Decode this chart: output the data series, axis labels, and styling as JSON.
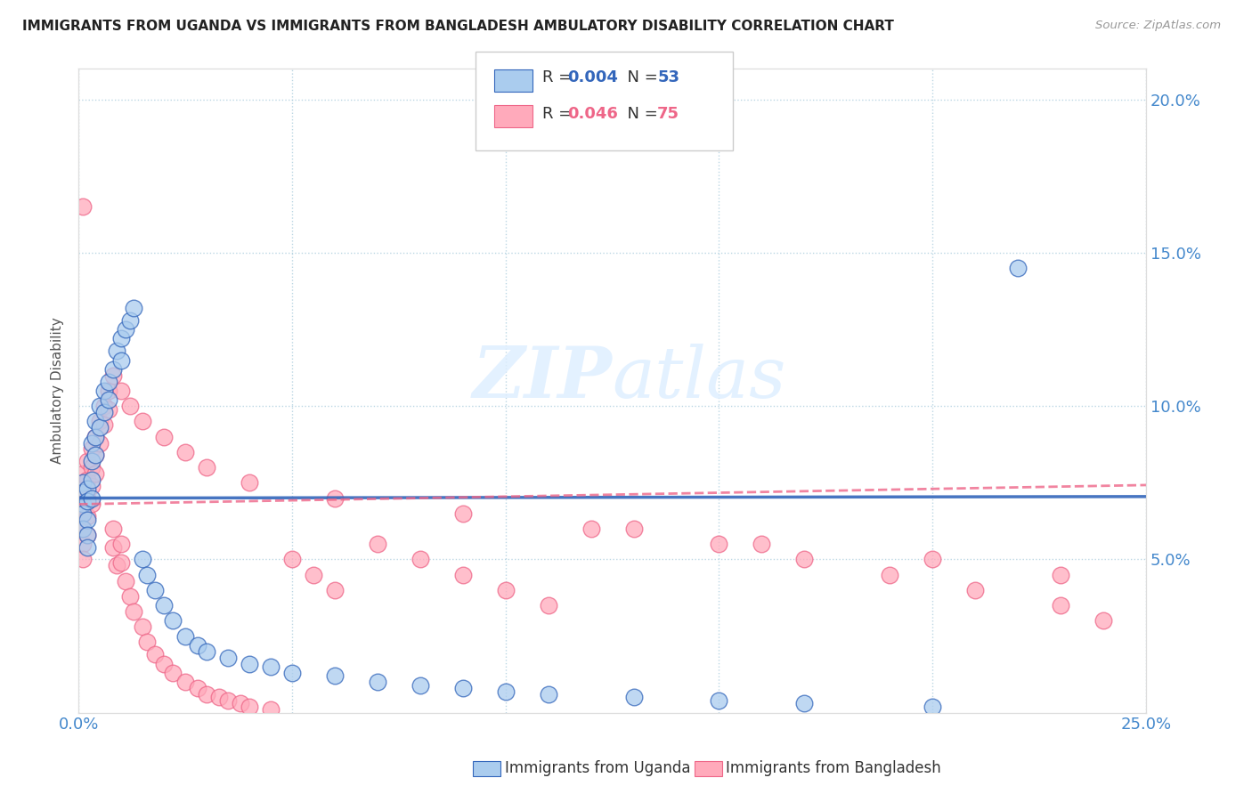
{
  "title": "IMMIGRANTS FROM UGANDA VS IMMIGRANTS FROM BANGLADESH AMBULATORY DISABILITY CORRELATION CHART",
  "source": "Source: ZipAtlas.com",
  "ylabel": "Ambulatory Disability",
  "xlim": [
    0.0,
    0.25
  ],
  "ylim": [
    0.0,
    0.21
  ],
  "yticks": [
    0.05,
    0.1,
    0.15,
    0.2
  ],
  "ytick_labels": [
    "5.0%",
    "10.0%",
    "15.0%",
    "20.0%"
  ],
  "xtick_positions": [
    0.0,
    0.05,
    0.1,
    0.15,
    0.2,
    0.25
  ],
  "xtick_labels": [
    "0.0%",
    "",
    "",
    "",
    "",
    "25.0%"
  ],
  "uganda_color": "#aaccee",
  "bangladesh_color": "#ffaabb",
  "uganda_line_color": "#3366bb",
  "bangladesh_line_color": "#ee6688",
  "background_color": "#ffffff",
  "uganda_N": 53,
  "bangladesh_N": 75,
  "uganda_R": 0.004,
  "bangladesh_R": 0.046,
  "legend_R_color": "#3366bb",
  "legend_bd_R_color": "#ee6688",
  "legend_N_color": "#3366bb",
  "legend_bd_N_color": "#ee6688",
  "uganda_x": [
    0.001,
    0.001,
    0.001,
    0.001,
    0.001,
    0.002,
    0.002,
    0.002,
    0.002,
    0.002,
    0.003,
    0.003,
    0.003,
    0.003,
    0.004,
    0.004,
    0.004,
    0.005,
    0.005,
    0.006,
    0.006,
    0.007,
    0.007,
    0.008,
    0.009,
    0.01,
    0.01,
    0.011,
    0.012,
    0.013,
    0.015,
    0.016,
    0.018,
    0.02,
    0.022,
    0.025,
    0.028,
    0.03,
    0.035,
    0.04,
    0.045,
    0.05,
    0.06,
    0.07,
    0.08,
    0.09,
    0.1,
    0.11,
    0.13,
    0.15,
    0.17,
    0.2,
    0.22
  ],
  "uganda_y": [
    0.075,
    0.072,
    0.068,
    0.065,
    0.06,
    0.073,
    0.069,
    0.063,
    0.058,
    0.054,
    0.088,
    0.082,
    0.076,
    0.07,
    0.095,
    0.09,
    0.084,
    0.1,
    0.093,
    0.105,
    0.098,
    0.108,
    0.102,
    0.112,
    0.118,
    0.122,
    0.115,
    0.125,
    0.128,
    0.132,
    0.05,
    0.045,
    0.04,
    0.035,
    0.03,
    0.025,
    0.022,
    0.02,
    0.018,
    0.016,
    0.015,
    0.013,
    0.012,
    0.01,
    0.009,
    0.008,
    0.007,
    0.006,
    0.005,
    0.004,
    0.003,
    0.002,
    0.145
  ],
  "bangladesh_x": [
    0.001,
    0.001,
    0.001,
    0.001,
    0.001,
    0.001,
    0.002,
    0.002,
    0.002,
    0.002,
    0.002,
    0.003,
    0.003,
    0.003,
    0.003,
    0.004,
    0.004,
    0.004,
    0.005,
    0.005,
    0.006,
    0.006,
    0.007,
    0.007,
    0.008,
    0.008,
    0.009,
    0.01,
    0.01,
    0.011,
    0.012,
    0.013,
    0.015,
    0.016,
    0.018,
    0.02,
    0.022,
    0.025,
    0.028,
    0.03,
    0.033,
    0.035,
    0.038,
    0.04,
    0.045,
    0.05,
    0.055,
    0.06,
    0.07,
    0.08,
    0.09,
    0.1,
    0.11,
    0.13,
    0.15,
    0.17,
    0.19,
    0.21,
    0.23,
    0.24,
    0.008,
    0.01,
    0.012,
    0.015,
    0.02,
    0.025,
    0.03,
    0.04,
    0.06,
    0.09,
    0.12,
    0.16,
    0.2,
    0.23,
    0.001
  ],
  "bangladesh_y": [
    0.078,
    0.072,
    0.065,
    0.06,
    0.055,
    0.05,
    0.082,
    0.076,
    0.07,
    0.064,
    0.058,
    0.086,
    0.08,
    0.074,
    0.068,
    0.09,
    0.084,
    0.078,
    0.095,
    0.088,
    0.1,
    0.094,
    0.105,
    0.099,
    0.06,
    0.054,
    0.048,
    0.055,
    0.049,
    0.043,
    0.038,
    0.033,
    0.028,
    0.023,
    0.019,
    0.016,
    0.013,
    0.01,
    0.008,
    0.006,
    0.005,
    0.004,
    0.003,
    0.002,
    0.001,
    0.05,
    0.045,
    0.04,
    0.055,
    0.05,
    0.045,
    0.04,
    0.035,
    0.06,
    0.055,
    0.05,
    0.045,
    0.04,
    0.035,
    0.03,
    0.11,
    0.105,
    0.1,
    0.095,
    0.09,
    0.085,
    0.08,
    0.075,
    0.07,
    0.065,
    0.06,
    0.055,
    0.05,
    0.045,
    0.165
  ]
}
